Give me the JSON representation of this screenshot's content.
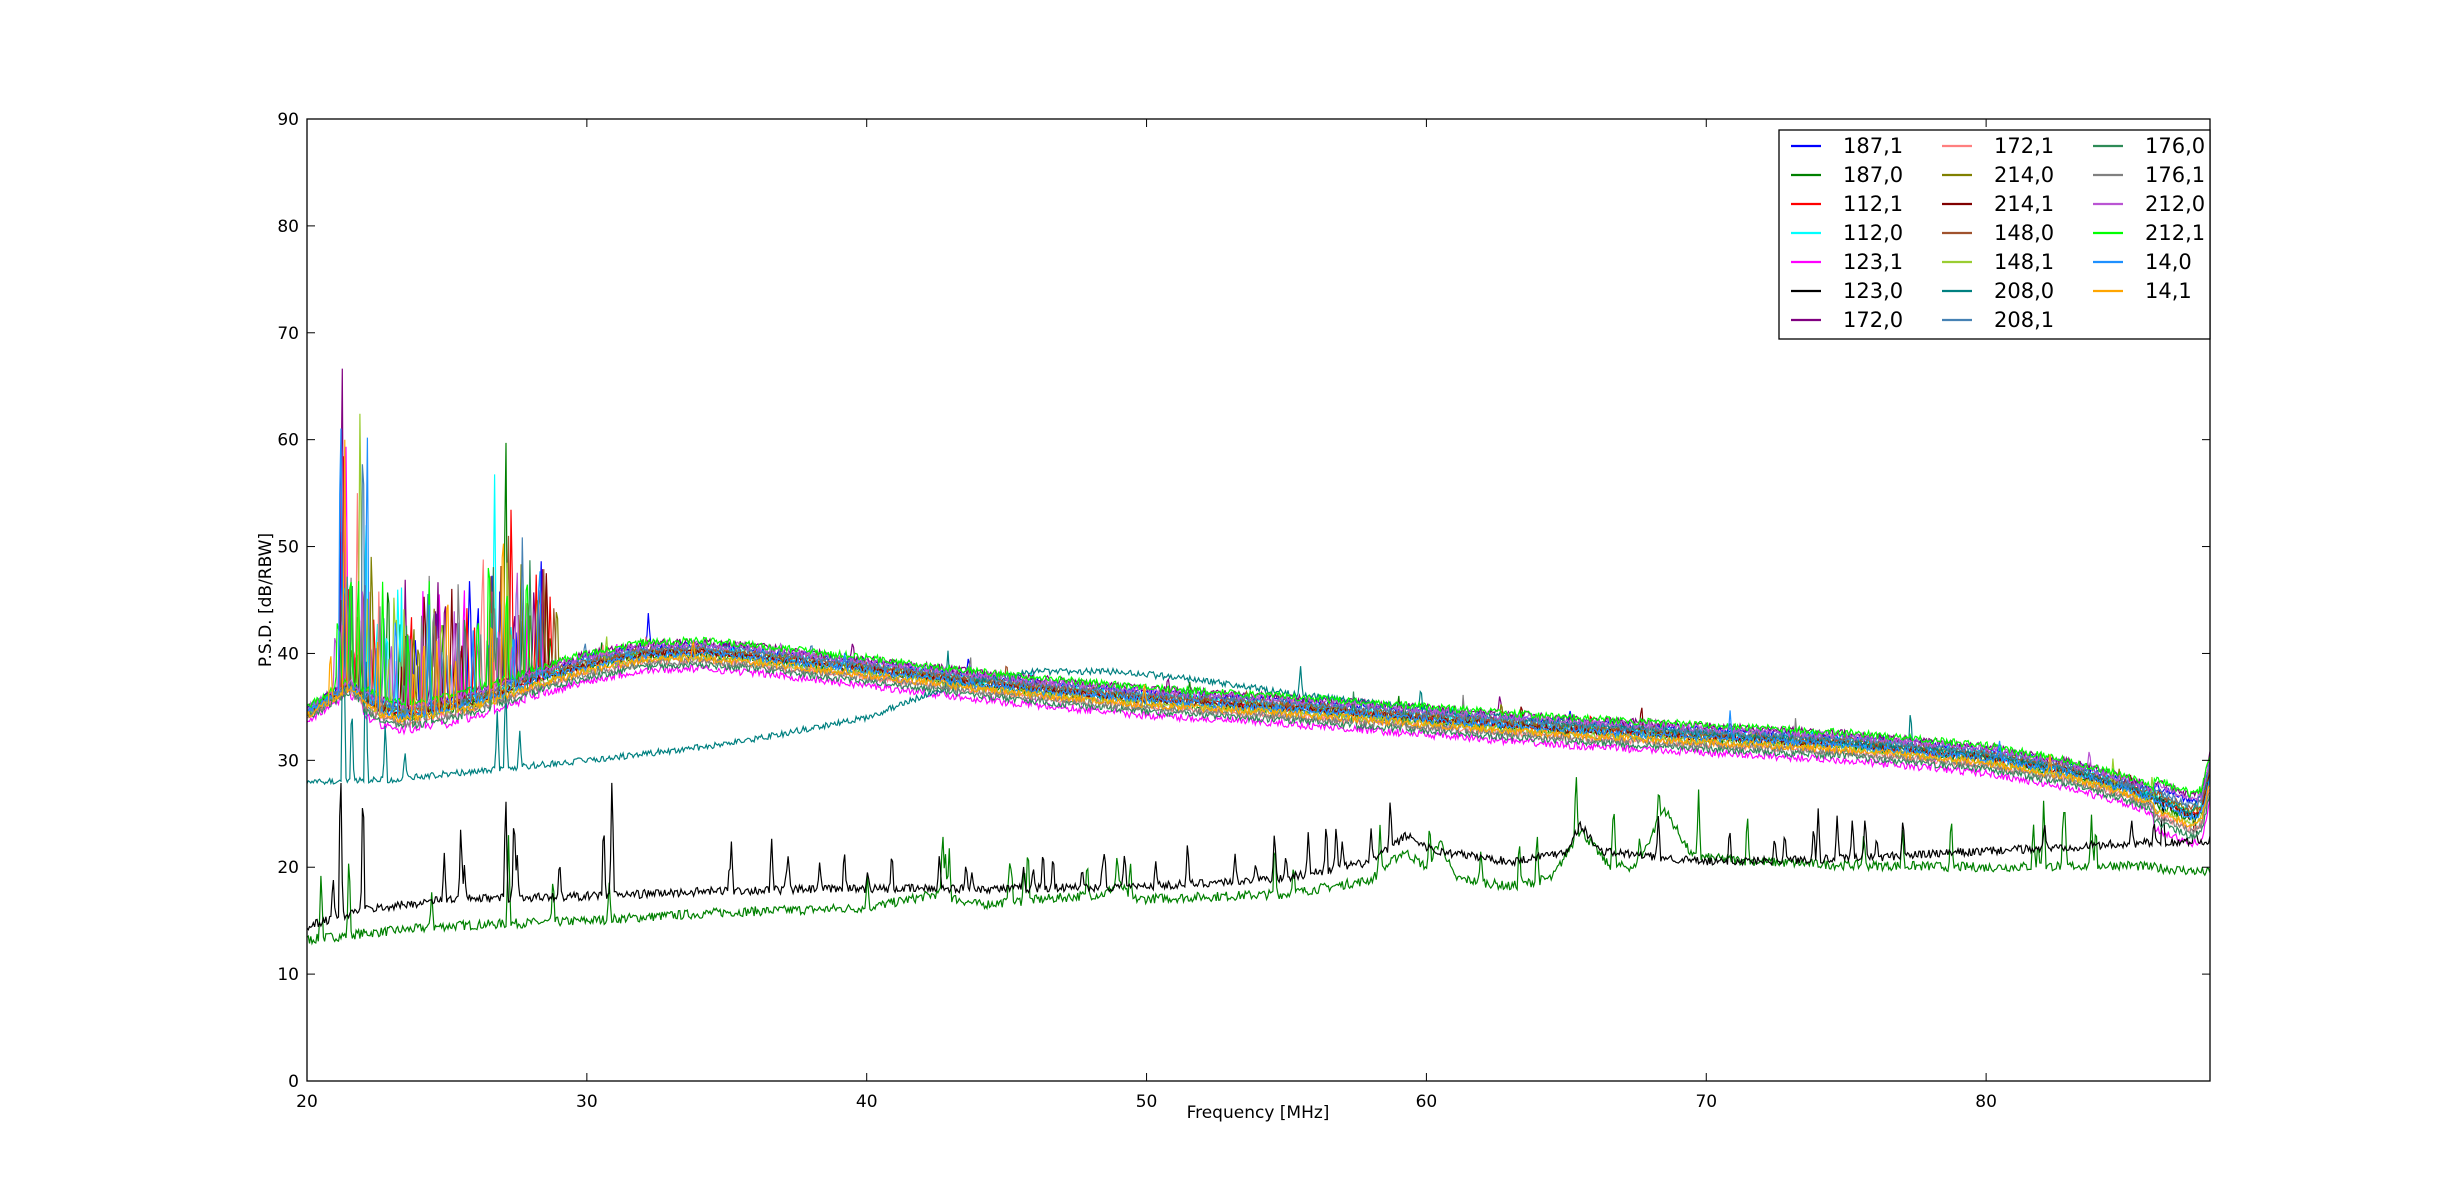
{
  "chart_data": {
    "type": "line",
    "xlabel": "Frequency [MHz]",
    "ylabel": "P.S.D. [dB/RBW]",
    "xlim": [
      20,
      88
    ],
    "ylim": [
      0,
      90
    ],
    "xticks": [
      20,
      30,
      40,
      50,
      60,
      70,
      80
    ],
    "yticks": [
      0,
      10,
      20,
      30,
      40,
      50,
      60,
      70,
      80,
      90
    ],
    "grid": false,
    "legend": {
      "placement": "top-right",
      "columns": 3
    },
    "series": [
      {
        "name": "187,1",
        "color": "#0000ff",
        "group": "main",
        "offset": 0.6,
        "spikes": [
          [
            21.2,
            55
          ],
          [
            26.9,
            48
          ],
          [
            32.2,
            44
          ]
        ]
      },
      {
        "name": "187,0",
        "color": "#008000",
        "group": "main",
        "offset": -0.3,
        "spikes": [
          [
            21.5,
            48
          ],
          [
            27.1,
            63.3
          ],
          [
            22.9,
            49.8
          ]
        ]
      },
      {
        "name": "112,1",
        "color": "#ff0000",
        "group": "main",
        "offset": 0.0,
        "spikes": [
          [
            21.3,
            60
          ],
          [
            27.3,
            56
          ]
        ]
      },
      {
        "name": "112,0",
        "color": "#00ffff",
        "group": "main",
        "offset": 0.2,
        "spikes": [
          [
            26.7,
            58.2
          ],
          [
            22.1,
            56
          ]
        ]
      },
      {
        "name": "123,1",
        "color": "#ff00ff",
        "group": "main",
        "offset": -1.6,
        "spikes": [
          [
            21.4,
            61
          ],
          [
            26.6,
            48.6
          ]
        ]
      },
      {
        "name": "123,0",
        "color": "#000000",
        "group": "black",
        "offset": 0,
        "spikes": []
      },
      {
        "name": "172,0",
        "color": "#800080",
        "group": "main",
        "offset": 0.9,
        "spikes": [
          [
            21.25,
            71.2
          ],
          [
            39.5,
            41.2
          ]
        ]
      },
      {
        "name": "172,1",
        "color": "#ff7f7f",
        "group": "main",
        "offset": -0.8,
        "spikes": [
          [
            21.8,
            55
          ]
        ]
      },
      {
        "name": "214,0",
        "color": "#808000",
        "group": "main",
        "offset": 0.1,
        "spikes": [
          [
            22.3,
            50
          ]
        ]
      },
      {
        "name": "214,1",
        "color": "#800000",
        "group": "main",
        "offset": -0.1,
        "spikes": [
          [
            24.2,
            48
          ]
        ]
      },
      {
        "name": "148,0",
        "color": "#a0522d",
        "group": "main",
        "offset": 0.3,
        "spikes": [
          [
            27.2,
            51
          ]
        ]
      },
      {
        "name": "148,1",
        "color": "#9acd32",
        "group": "main",
        "offset": -0.5,
        "spikes": [
          [
            21.9,
            66.5
          ],
          [
            30.7,
            42
          ]
        ]
      },
      {
        "name": "208,0",
        "color": "#008080",
        "group": "teal",
        "offset": 0,
        "spikes": [
          [
            21.3,
            51
          ],
          [
            22.1,
            42
          ],
          [
            22.8,
            34
          ],
          [
            27.1,
            38
          ],
          [
            42.9,
            40.5
          ],
          [
            55.5,
            39
          ],
          [
            59.8,
            37
          ],
          [
            77.3,
            35
          ]
        ]
      },
      {
        "name": "208,1",
        "color": "#4682b4",
        "group": "main",
        "offset": 0.4,
        "spikes": [
          [
            22.0,
            65.5
          ],
          [
            27.7,
            51.8
          ]
        ]
      },
      {
        "name": "176,0",
        "color": "#2e8b57",
        "group": "main",
        "offset": -1.2,
        "spikes": [
          [
            21.6,
            50
          ]
        ]
      },
      {
        "name": "176,1",
        "color": "#808080",
        "group": "main",
        "offset": -0.9,
        "spikes": [
          [
            22.6,
            46
          ],
          [
            43.7,
            40.4
          ]
        ]
      },
      {
        "name": "212,0",
        "color": "#ba55d3",
        "group": "main",
        "offset": 0.7,
        "spikes": [
          [
            23.0,
            42
          ],
          [
            27.5,
            50
          ]
        ]
      },
      {
        "name": "212,1",
        "color": "#00ff00",
        "group": "main",
        "offset": 1.0,
        "spikes": [
          [
            21.1,
            45
          ],
          [
            26.5,
            52
          ]
        ]
      },
      {
        "name": "14,0",
        "color": "#1e90ff",
        "group": "main",
        "offset": -0.2,
        "spikes": [
          [
            21.2,
            67.2
          ],
          [
            22.15,
            64
          ]
        ]
      },
      {
        "name": "14,1",
        "color": "#ffa500",
        "group": "main",
        "offset": -0.6,
        "spikes": [
          [
            21.35,
            60
          ],
          [
            27.0,
            55.5
          ]
        ]
      }
    ],
    "green_floor_color": "#008000"
  }
}
